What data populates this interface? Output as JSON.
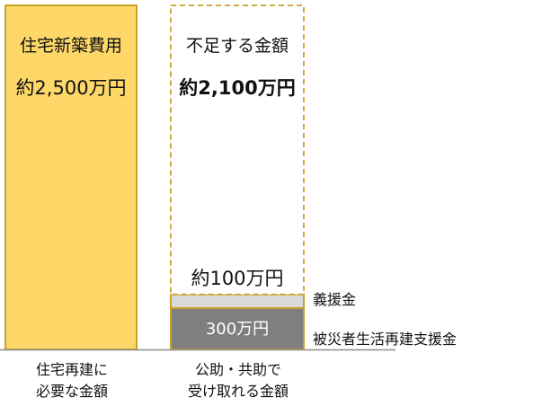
{
  "chart_data": {
    "type": "bar",
    "stacked": true,
    "unit": "万円",
    "categories": [
      {
        "line1": "住宅再建に",
        "line2": "必要な金額"
      },
      {
        "line1": "公助・共助で",
        "line2": "受け取れる金額"
      }
    ],
    "bars": [
      {
        "title": "住宅新築費用",
        "value_label": "約2,500万円",
        "segments": [
          {
            "series": "住宅新築費用",
            "value": 2500,
            "color": "#FDD768",
            "border": "#C9A227"
          }
        ]
      },
      {
        "title": "不足する金額",
        "value_label": "約2,100万円",
        "segments": [
          {
            "series": "被災者生活再建支援金",
            "value": 300,
            "label": "300万円",
            "color": "#7F7F7F",
            "border": "#C9A227"
          },
          {
            "series": "義援金",
            "value": 100,
            "label": "約100万円",
            "color": "#D9D9D9",
            "border": "#C9A227"
          },
          {
            "series": "不足する金額",
            "value": 2100,
            "color": "#FFFFFF",
            "border": "#C9A227",
            "dashed": true
          }
        ]
      }
    ],
    "legend": {
      "placement": "right",
      "items": [
        "義援金",
        "被災者生活再建支援金"
      ]
    },
    "ylim": [
      0,
      2500
    ],
    "grid": false
  }
}
